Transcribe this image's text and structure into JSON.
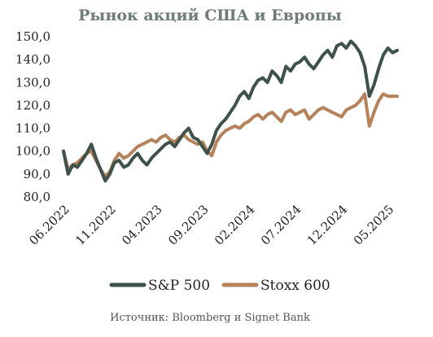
{
  "chart_data": {
    "type": "line",
    "title": "Рынок акций США и Европы",
    "source": "Источник: Bloomberg и Signet Bank",
    "ylim": [
      80,
      150
    ],
    "yticks": [
      "80,0",
      "90,0",
      "100,0",
      "110,0",
      "120,0",
      "130,0",
      "140,0",
      "150,0"
    ],
    "ytick_values": [
      80,
      90,
      100,
      110,
      120,
      130,
      140,
      150
    ],
    "xlim": [
      0,
      36
    ],
    "xtick_labels": [
      "06.2022",
      "11.2022",
      "04.2023",
      "09.2023",
      "02.2024",
      "07.2024",
      "12.2024",
      "05.2025"
    ],
    "xtick_positions": [
      0,
      5,
      10,
      15,
      20,
      25,
      30,
      35
    ],
    "grid": false,
    "legend_position": "bottom",
    "x": [
      0,
      0.5,
      1,
      1.5,
      2,
      2.5,
      3,
      3.5,
      4,
      4.5,
      5,
      5.5,
      6,
      6.5,
      7,
      7.5,
      8,
      8.5,
      9,
      9.5,
      10,
      10.5,
      11,
      11.5,
      12,
      12.5,
      13,
      13.5,
      14,
      14.5,
      15,
      15.5,
      16,
      16.5,
      17,
      17.5,
      18,
      18.5,
      19,
      19.5,
      20,
      20.5,
      21,
      21.5,
      22,
      22.5,
      23,
      23.5,
      24,
      24.5,
      25,
      25.5,
      26,
      26.5,
      27,
      27.5,
      28,
      28.5,
      29,
      29.5,
      30,
      30.5,
      31,
      31.5,
      32,
      32.5,
      33,
      33.5,
      34,
      34.5,
      35,
      35.5,
      36
    ],
    "series": [
      {
        "name": "S&P 500",
        "color": "#3e524b",
        "values": [
          100,
          90,
          94,
          93,
          96,
          99,
          103,
          97,
          92,
          87,
          90,
          95,
          96,
          93,
          94,
          97,
          99,
          96,
          94,
          97,
          99,
          101,
          103,
          104,
          102,
          105,
          108,
          110,
          106,
          105,
          102,
          99,
          103,
          109,
          112,
          114,
          117,
          120,
          124,
          126,
          123,
          128,
          131,
          132,
          130,
          135,
          133,
          130,
          137,
          135,
          138,
          139,
          141,
          138,
          136,
          139,
          142,
          144,
          141,
          146,
          147,
          145,
          148,
          146,
          143,
          137,
          124,
          129,
          136,
          142,
          145,
          143,
          144
        ]
      },
      {
        "name": "Stoxx 600",
        "color": "#b5825c",
        "values": [
          100,
          92,
          94,
          95,
          97,
          99,
          100,
          96,
          92,
          89,
          91,
          96,
          99,
          97,
          98,
          100,
          102,
          103,
          104,
          105,
          104,
          106,
          107,
          105,
          104,
          106,
          107,
          105,
          104,
          103,
          104,
          100,
          98,
          104,
          107,
          109,
          110,
          111,
          110,
          112,
          113,
          115,
          116,
          114,
          116,
          117,
          115,
          113,
          117,
          118,
          116,
          117,
          118,
          114,
          116,
          118,
          119,
          118,
          117,
          116,
          115,
          118,
          119,
          120,
          122,
          125,
          111,
          117,
          122,
          125,
          124,
          124,
          124
        ]
      }
    ]
  }
}
